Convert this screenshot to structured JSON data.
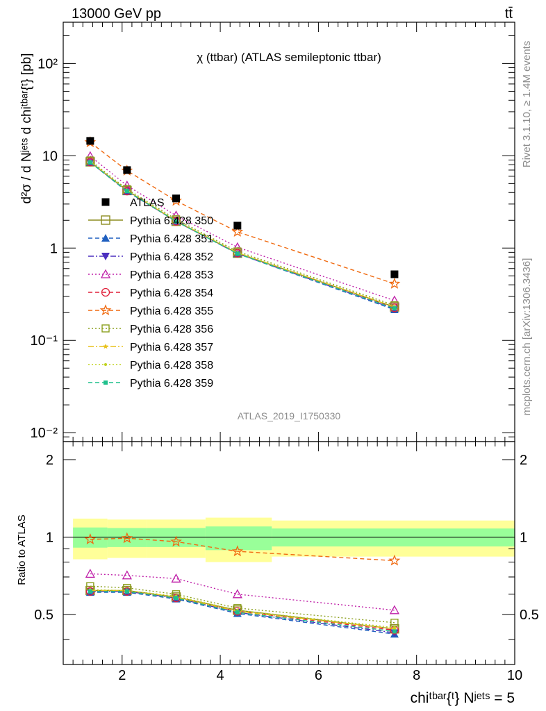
{
  "header": {
    "energy_label": "13000 GeV pp",
    "process_label": "tt̄",
    "plot_title": "χ (ttbar) (ATLAS semileptonic ttbar)",
    "analysis_id": "ATLAS_2019_I1750330",
    "rivet_label": "Rivet 3.1.10, ≥ 1.4M events",
    "mcplots_label": "mcplots.cern.ch [arXiv:1306.3436]"
  },
  "axes": {
    "main_ylabel": "d²σ / d Nʲᵉᵗˢ d chiᵗᵇᵃʳ{ᵗ} [pb]",
    "ratio_ylabel": "Ratio to ATLAS",
    "xlabel": "chiᵗᵇᵃʳ{ᵗ} Nʲᵉᵗˢ = 5"
  },
  "chart_data": {
    "type": "line",
    "x_scale": "linear",
    "y_scale": "log",
    "xlim": [
      0.8,
      10.0
    ],
    "ylim": [
      0.008,
      280
    ],
    "ratio_ylim": [
      0.32,
      2.35
    ],
    "x_ticks": [
      2,
      4,
      6,
      8,
      10
    ],
    "y_tick_labels": [
      "10⁻²",
      "10⁻¹",
      "1",
      "10",
      "10²"
    ],
    "ratio_tick_labels": [
      "0.5",
      "1",
      "2"
    ],
    "legend_position": "middle-left",
    "x": [
      1.35,
      2.1,
      3.1,
      4.35,
      7.55
    ],
    "bin_edges": [
      1.0,
      1.7,
      2.5,
      3.7,
      5.05,
      10.0
    ],
    "data": {
      "name": "ATLAS",
      "values": [
        14.5,
        7.0,
        3.45,
        1.75,
        0.52
      ],
      "ratio_band_inner": [
        [
          0.91,
          1.09
        ],
        [
          0.915,
          1.085
        ],
        [
          0.915,
          1.085
        ],
        [
          0.89,
          1.1
        ],
        [
          0.92,
          1.08
        ]
      ],
      "ratio_band_outer": [
        [
          0.82,
          1.18
        ],
        [
          0.83,
          1.17
        ],
        [
          0.83,
          1.17
        ],
        [
          0.8,
          1.19
        ],
        [
          0.84,
          1.16
        ]
      ]
    },
    "series": [
      {
        "name": "Pythia 6.428 350",
        "values": [
          8.6,
          4.2,
          1.95,
          0.88,
          0.23
        ],
        "ratio": [
          0.62,
          0.62,
          0.585,
          0.52,
          0.44
        ],
        "color": "#8c8c1f",
        "marker": "square-open",
        "dash": "solid"
      },
      {
        "name": "Pythia 6.428 351",
        "values": [
          8.5,
          4.1,
          1.95,
          0.87,
          0.215
        ],
        "ratio": [
          0.61,
          0.61,
          0.575,
          0.505,
          0.42
        ],
        "color": "#1f5fbf",
        "marker": "triangle-up",
        "dash": "dashed"
      },
      {
        "name": "Pythia 6.428 352",
        "values": [
          8.5,
          4.15,
          1.95,
          0.87,
          0.22
        ],
        "ratio": [
          0.615,
          0.615,
          0.58,
          0.51,
          0.425
        ],
        "color": "#4b2fbf",
        "marker": "triangle-down",
        "dash": "dashdot"
      },
      {
        "name": "Pythia 6.428 353",
        "values": [
          9.9,
          4.75,
          2.25,
          1.02,
          0.27
        ],
        "ratio": [
          0.72,
          0.71,
          0.69,
          0.6,
          0.52
        ],
        "color": "#bf1fa8",
        "marker": "triangle-open",
        "dash": "dotted"
      },
      {
        "name": "Pythia 6.428 354",
        "values": [
          8.55,
          4.15,
          1.95,
          0.88,
          0.225
        ],
        "ratio": [
          0.615,
          0.615,
          0.58,
          0.515,
          0.435
        ],
        "color": "#e0203a",
        "marker": "circle-open",
        "dash": "dashed"
      },
      {
        "name": "Pythia 6.428 355",
        "values": [
          14.0,
          6.9,
          3.25,
          1.5,
          0.41
        ],
        "ratio": [
          0.98,
          0.99,
          0.96,
          0.88,
          0.81
        ],
        "color": "#f06a10",
        "marker": "star-open",
        "dash": "dashed"
      },
      {
        "name": "Pythia 6.428 356",
        "values": [
          8.9,
          4.35,
          2.05,
          0.92,
          0.24
        ],
        "ratio": [
          0.645,
          0.635,
          0.6,
          0.53,
          0.465
        ],
        "color": "#8ca01f",
        "marker": "square-open-small",
        "dash": "dotted"
      },
      {
        "name": "Pythia 6.428 357",
        "values": [
          8.6,
          4.2,
          1.97,
          0.89,
          0.23
        ],
        "ratio": [
          0.62,
          0.62,
          0.585,
          0.515,
          0.44
        ],
        "color": "#e8c21a",
        "marker": "star-small",
        "dash": "dashdot"
      },
      {
        "name": "Pythia 6.428 358",
        "values": [
          8.65,
          4.22,
          1.98,
          0.89,
          0.232
        ],
        "ratio": [
          0.625,
          0.62,
          0.59,
          0.52,
          0.445
        ],
        "color": "#c0d21f",
        "marker": "dot",
        "dash": "dotted"
      },
      {
        "name": "Pythia 6.428 359",
        "values": [
          8.5,
          4.15,
          1.95,
          0.87,
          0.222
        ],
        "ratio": [
          0.615,
          0.615,
          0.58,
          0.51,
          0.43
        ],
        "color": "#1fc08c",
        "marker": "square-small",
        "dash": "dashed"
      }
    ]
  }
}
